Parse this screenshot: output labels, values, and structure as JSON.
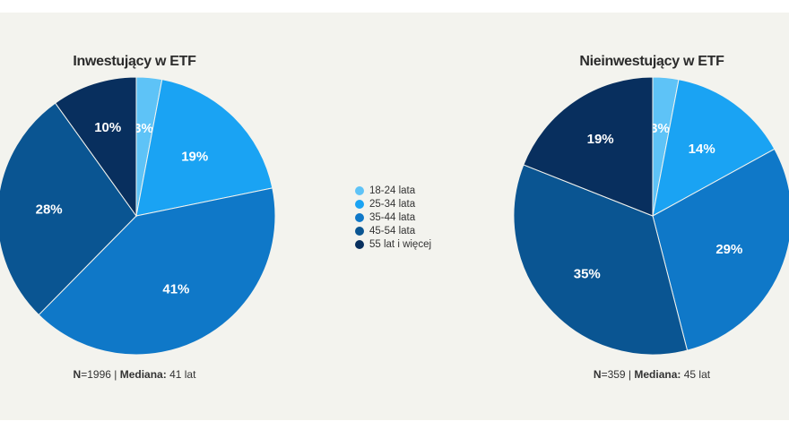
{
  "charts": {
    "left": {
      "title": "Inwestujący w ETF",
      "footnote": {
        "n_label": "N",
        "n_value": "=1996",
        "sep": " | ",
        "median_label": "Mediana:",
        "median_value": " 41 lat"
      }
    },
    "right": {
      "title": "Nieinwestujący w ETF",
      "footnote": {
        "n_label": "N",
        "n_value": "=359",
        "sep": " | ",
        "median_label": "Mediana:",
        "median_value": " 45 lat"
      }
    }
  },
  "legend": [
    {
      "label": "18-24 lata",
      "color": "#5ec3f7"
    },
    {
      "label": "25-34 lata",
      "color": "#1aa3f3"
    },
    {
      "label": "35-44 lata",
      "color": "#0f78c8"
    },
    {
      "label": "45-54 lata",
      "color": "#0a5592"
    },
    {
      "label": "55 lat i więcej",
      "color": "#082f5e"
    }
  ],
  "chart_data": [
    {
      "type": "pie",
      "title": "Inwestujący w ETF",
      "categories": [
        "18-24 lata",
        "25-34 lata",
        "35-44 lata",
        "45-54 lata",
        "55 lat i więcej"
      ],
      "values": [
        3,
        19,
        41,
        28,
        10
      ],
      "labels": [
        "3%",
        "19%",
        "41%",
        "28%",
        "10%"
      ],
      "unit": "%"
    },
    {
      "type": "pie",
      "title": "Nieinwestujący w ETF",
      "categories": [
        "18-24 lata",
        "25-34 lata",
        "35-44 lata",
        "45-54 lata",
        "55 lat i więcej"
      ],
      "values": [
        3,
        14,
        29,
        35,
        19
      ],
      "labels": [
        "3%",
        "14%",
        "29%",
        "35%",
        "19%"
      ],
      "unit": "%"
    }
  ]
}
